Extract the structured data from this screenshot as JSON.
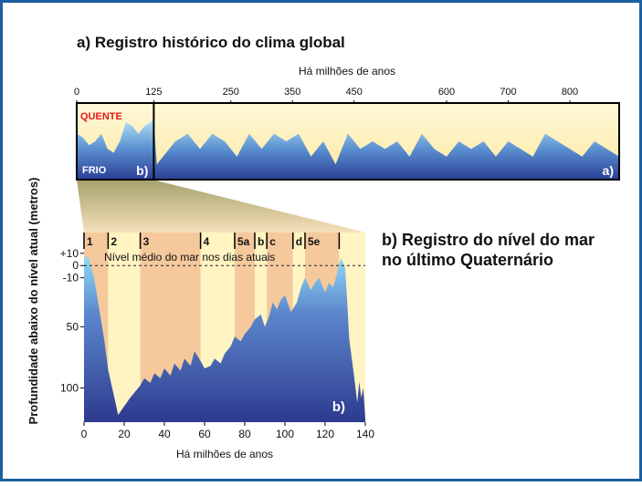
{
  "chart_data": [
    {
      "type": "area",
      "title": "a) Registro histórico do clima global",
      "xlabel": "Há milhões de anos",
      "xlim": [
        0,
        880
      ],
      "xticks": [
        0,
        125,
        250,
        350,
        450,
        600,
        700,
        800
      ],
      "ylim": [
        0,
        10
      ],
      "hot_label": "QUENTE",
      "cold_label": "FRIO",
      "divider": 125,
      "panel_labels": [
        "b)",
        "a)"
      ],
      "x": [
        0,
        10,
        20,
        30,
        40,
        50,
        60,
        70,
        80,
        90,
        100,
        110,
        120,
        125,
        130,
        140,
        160,
        180,
        200,
        220,
        240,
        260,
        280,
        300,
        320,
        340,
        360,
        380,
        400,
        420,
        440,
        460,
        480,
        500,
        520,
        540,
        560,
        580,
        600,
        620,
        640,
        660,
        680,
        700,
        720,
        740,
        760,
        780,
        800,
        820,
        840,
        860,
        880
      ],
      "values": [
        6,
        5.5,
        4.5,
        5,
        6,
        4,
        3.5,
        5,
        7.5,
        7,
        6,
        7,
        7.5,
        8,
        2,
        3,
        5,
        6,
        4,
        6,
        5,
        3,
        6,
        4,
        6,
        5,
        6,
        3,
        5,
        2,
        6,
        4,
        5,
        4,
        5,
        3,
        6,
        4,
        3,
        5,
        4,
        5,
        3,
        5,
        4,
        3,
        6,
        5,
        4,
        3,
        5,
        4,
        3
      ]
    },
    {
      "type": "area",
      "title": [
        "b) Registro do nível do mar",
        "no último Quaternário"
      ],
      "xlabel": "Há milhões de anos",
      "ylabel": "Profundidade abaixo do nível atual (metros)",
      "xlim": [
        0,
        140
      ],
      "xticks": [
        0,
        20,
        40,
        60,
        80,
        100,
        120,
        140
      ],
      "ylim": [
        -128,
        27
      ],
      "yticks": [
        {
          "value": 10,
          "label": "+10"
        },
        0,
        -10,
        {
          "value": -50,
          "label": "50"
        },
        {
          "value": -100,
          "label": "100"
        }
      ],
      "reference_line": {
        "value": 0,
        "label": "Nível médio do mar nos dias atuais"
      },
      "panel_label": "b)",
      "stages": [
        {
          "label": "1",
          "start": 0,
          "end": 12,
          "color": "#f5c99c"
        },
        {
          "label": "2",
          "start": 12,
          "end": 28,
          "color": "#fff4c2"
        },
        {
          "label": "3",
          "start": 28,
          "end": 58,
          "color": "#f5c99c"
        },
        {
          "label": "4",
          "start": 58,
          "end": 75,
          "color": "#fff4c2"
        },
        {
          "label": "5a",
          "start": 75,
          "end": 85,
          "color": "#f5c99c"
        },
        {
          "label": "b",
          "start": 85,
          "end": 91,
          "color": "#fff4c2"
        },
        {
          "label": "c",
          "start": 91,
          "end": 104,
          "color": "#f5c99c"
        },
        {
          "label": "d",
          "start": 104,
          "end": 110,
          "color": "#fff4c2"
        },
        {
          "label": "5e",
          "start": 110,
          "end": 127,
          "color": "#f5c99c"
        },
        {
          "label": null,
          "start": 127,
          "end": 140,
          "color": "#fff4c2"
        }
      ],
      "x": [
        0,
        2,
        5,
        8,
        10,
        12,
        14,
        17,
        20,
        23,
        25,
        28,
        30,
        33,
        35,
        38,
        40,
        43,
        45,
        48,
        50,
        53,
        55,
        58,
        60,
        63,
        65,
        68,
        70,
        73,
        75,
        78,
        80,
        83,
        85,
        88,
        90,
        92,
        94,
        96,
        98,
        100,
        103,
        106,
        108,
        110,
        113,
        115,
        117,
        120,
        122,
        124,
        126,
        127,
        128,
        130,
        131,
        132,
        134,
        136,
        137,
        138,
        139,
        140
      ],
      "values": [
        5,
        8,
        -10,
        -40,
        -60,
        -85,
        -100,
        -122,
        -115,
        -108,
        -104,
        -98,
        -92,
        -96,
        -88,
        -92,
        -84,
        -90,
        -80,
        -86,
        -76,
        -82,
        -70,
        -78,
        -84,
        -82,
        -76,
        -80,
        -72,
        -66,
        -58,
        -62,
        -56,
        -50,
        -44,
        -40,
        -50,
        -42,
        -30,
        -36,
        -28,
        -24,
        -38,
        -30,
        -18,
        -10,
        -20,
        -14,
        -10,
        -22,
        -14,
        -18,
        -6,
        2,
        6,
        -2,
        -30,
        -60,
        -85,
        -112,
        -95,
        -108,
        -100,
        -125
      ]
    }
  ]
}
